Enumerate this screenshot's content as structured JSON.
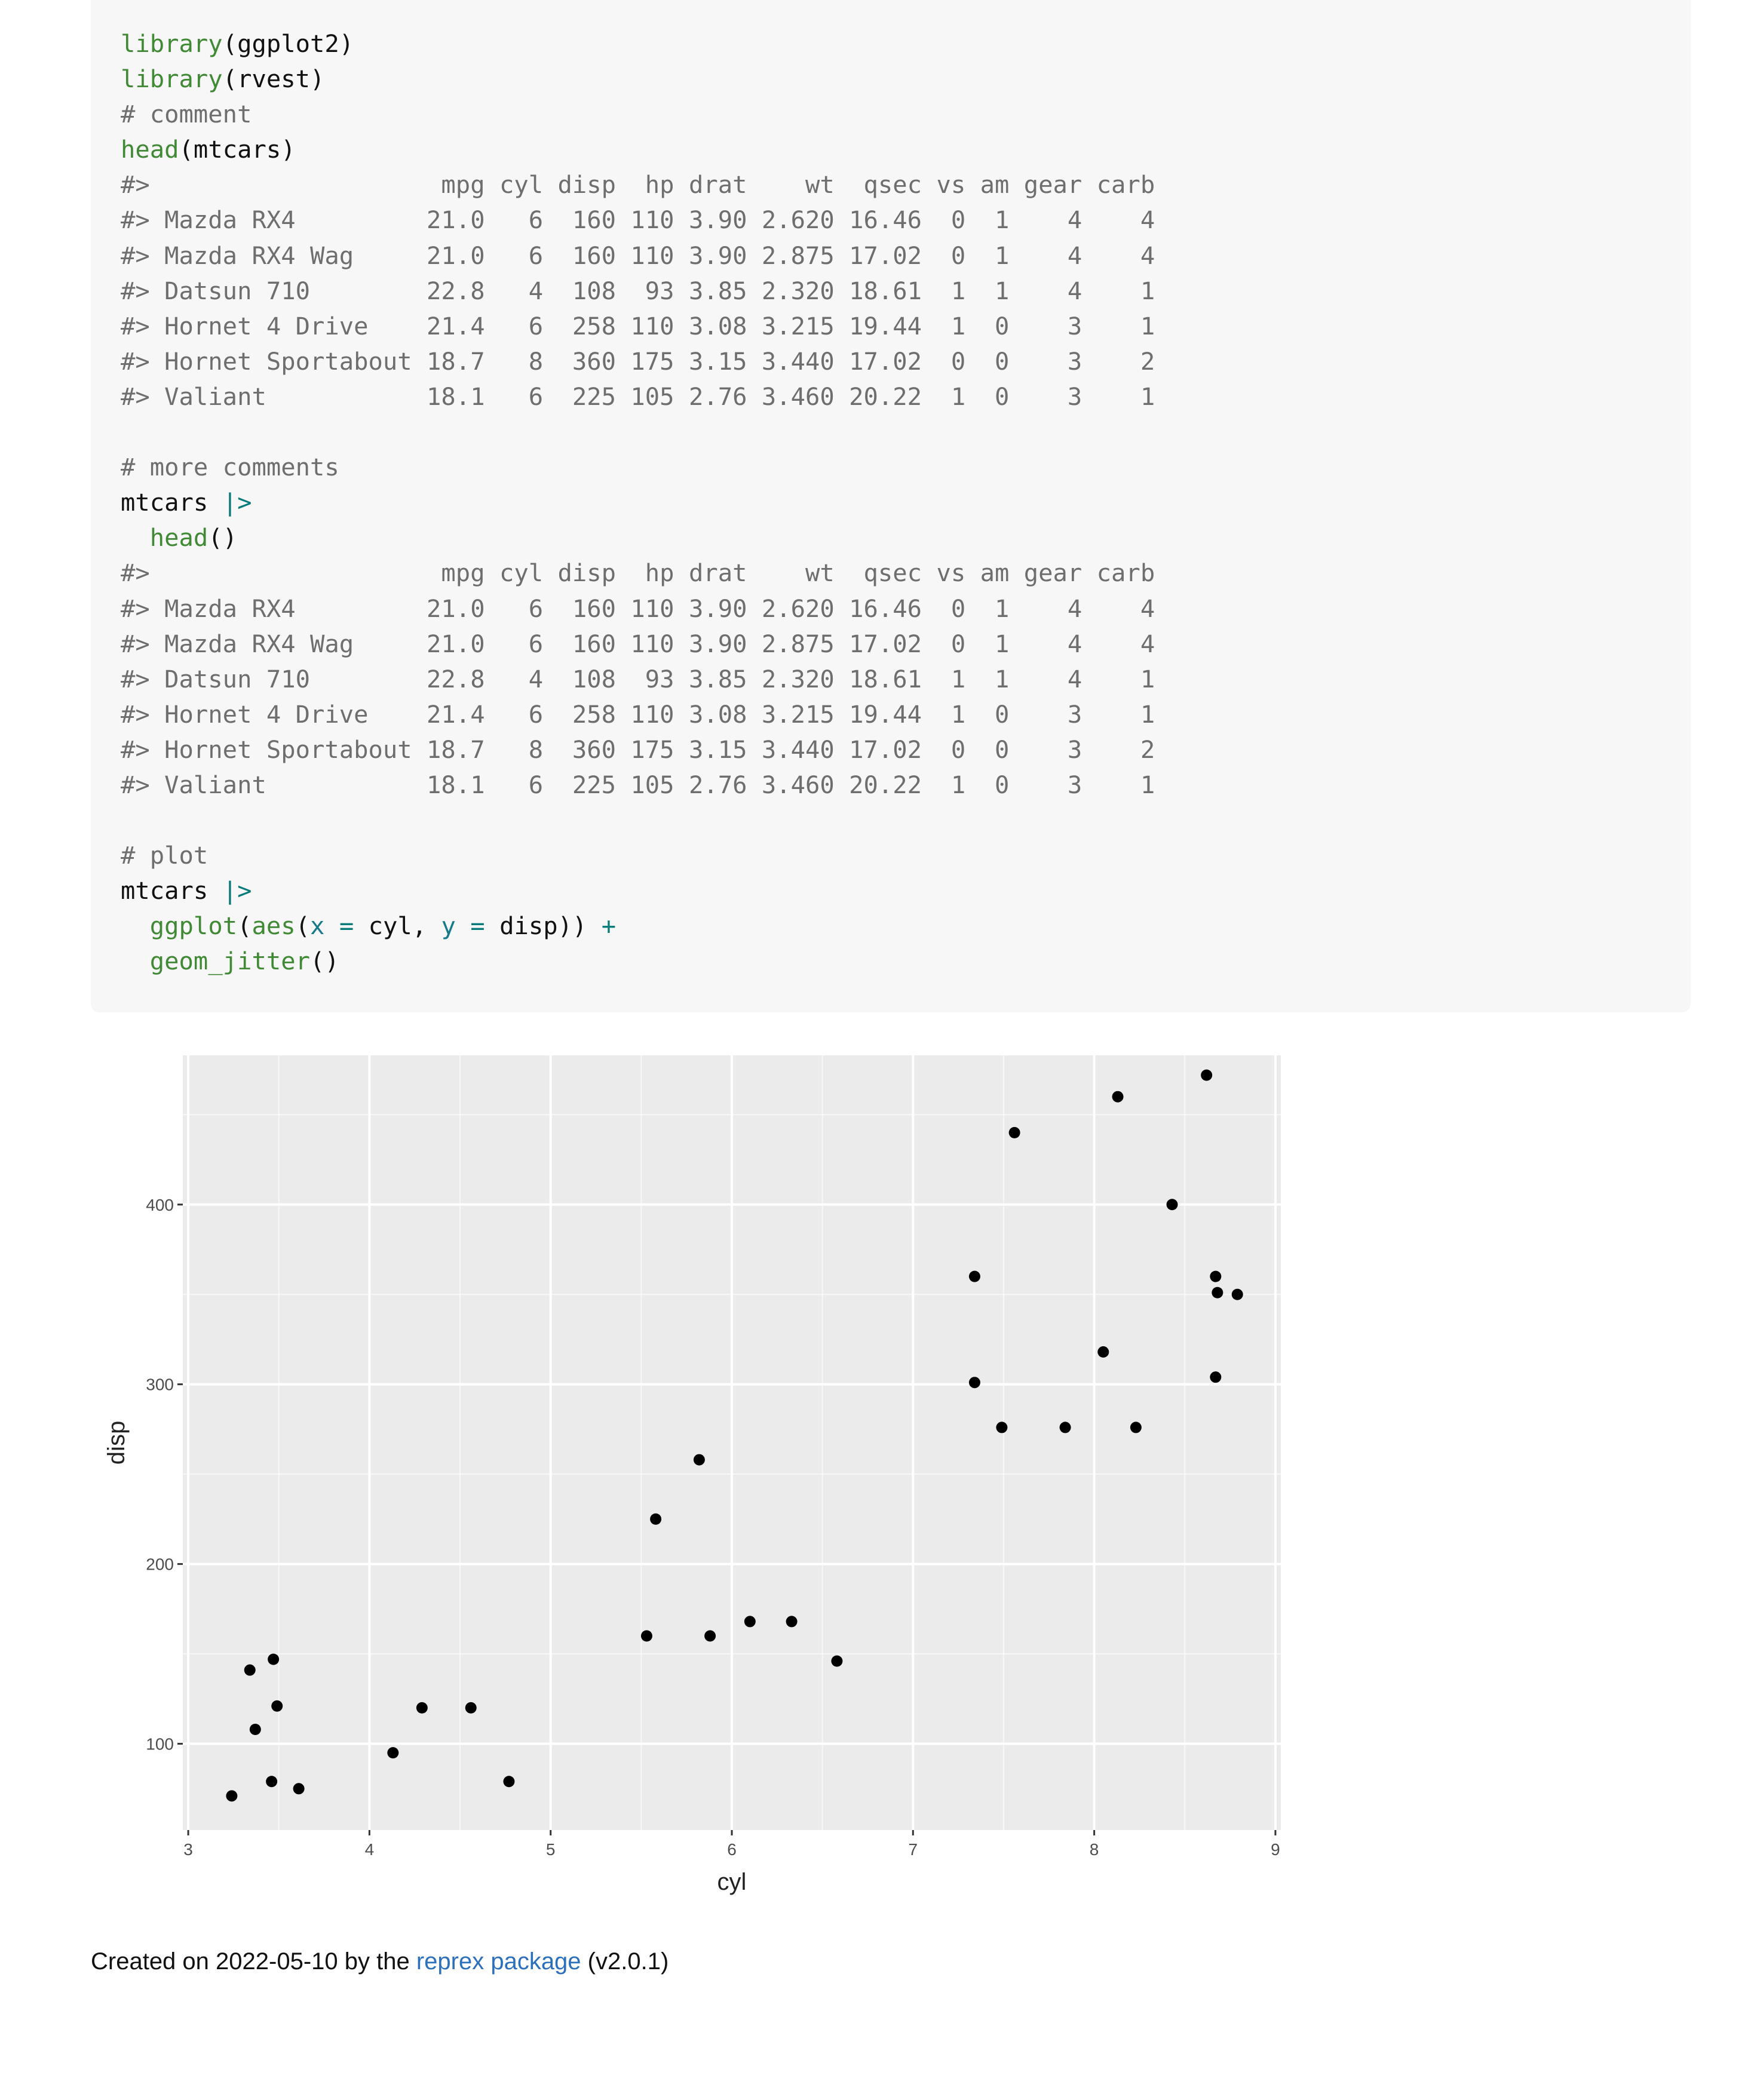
{
  "code": {
    "lines": [
      [
        {
          "t": "library",
          "c": "fn"
        },
        {
          "t": "(ggplot2)"
        }
      ],
      [
        {
          "t": "library",
          "c": "fn"
        },
        {
          "t": "(rvest)"
        }
      ],
      [
        {
          "t": "# comment",
          "c": "cm"
        }
      ],
      [
        {
          "t": "head",
          "c": "fn"
        },
        {
          "t": "(mtcars)"
        }
      ],
      [
        {
          "t": "#>                    mpg cyl disp  hp drat    wt  qsec vs am gear carb",
          "c": "out"
        }
      ],
      [
        {
          "t": "#> Mazda RX4         21.0   6  160 110 3.90 2.620 16.46  0  1    4    4",
          "c": "out"
        }
      ],
      [
        {
          "t": "#> Mazda RX4 Wag     21.0   6  160 110 3.90 2.875 17.02  0  1    4    4",
          "c": "out"
        }
      ],
      [
        {
          "t": "#> Datsun 710        22.8   4  108  93 3.85 2.320 18.61  1  1    4    1",
          "c": "out"
        }
      ],
      [
        {
          "t": "#> Hornet 4 Drive    21.4   6  258 110 3.08 3.215 19.44  1  0    3    1",
          "c": "out"
        }
      ],
      [
        {
          "t": "#> Hornet Sportabout 18.7   8  360 175 3.15 3.440 17.02  0  0    3    2",
          "c": "out"
        }
      ],
      [
        {
          "t": "#> Valiant           18.1   6  225 105 2.76 3.460 20.22  1  0    3    1",
          "c": "out"
        }
      ],
      [
        {
          "t": ""
        }
      ],
      [
        {
          "t": "# more comments",
          "c": "cm"
        }
      ],
      [
        {
          "t": "mtcars "
        },
        {
          "t": "|>",
          "c": "op"
        }
      ],
      [
        {
          "t": "  "
        },
        {
          "t": "head",
          "c": "fn"
        },
        {
          "t": "()"
        }
      ],
      [
        {
          "t": "#>                    mpg cyl disp  hp drat    wt  qsec vs am gear carb",
          "c": "out"
        }
      ],
      [
        {
          "t": "#> Mazda RX4         21.0   6  160 110 3.90 2.620 16.46  0  1    4    4",
          "c": "out"
        }
      ],
      [
        {
          "t": "#> Mazda RX4 Wag     21.0   6  160 110 3.90 2.875 17.02  0  1    4    4",
          "c": "out"
        }
      ],
      [
        {
          "t": "#> Datsun 710        22.8   4  108  93 3.85 2.320 18.61  1  1    4    1",
          "c": "out"
        }
      ],
      [
        {
          "t": "#> Hornet 4 Drive    21.4   6  258 110 3.08 3.215 19.44  1  0    3    1",
          "c": "out"
        }
      ],
      [
        {
          "t": "#> Hornet Sportabout 18.7   8  360 175 3.15 3.440 17.02  0  0    3    2",
          "c": "out"
        }
      ],
      [
        {
          "t": "#> Valiant           18.1   6  225 105 2.76 3.460 20.22  1  0    3    1",
          "c": "out"
        }
      ],
      [
        {
          "t": ""
        }
      ],
      [
        {
          "t": "# plot",
          "c": "cm"
        }
      ],
      [
        {
          "t": "mtcars "
        },
        {
          "t": "|>",
          "c": "op"
        }
      ],
      [
        {
          "t": "  "
        },
        {
          "t": "ggplot",
          "c": "fn"
        },
        {
          "t": "("
        },
        {
          "t": "aes",
          "c": "fn"
        },
        {
          "t": "("
        },
        {
          "t": "x",
          "c": "arg"
        },
        {
          "t": " "
        },
        {
          "t": "=",
          "c": "op"
        },
        {
          "t": " cyl, "
        },
        {
          "t": "y",
          "c": "arg"
        },
        {
          "t": " "
        },
        {
          "t": "=",
          "c": "op"
        },
        {
          "t": " disp)) "
        },
        {
          "t": "+",
          "c": "op"
        }
      ],
      [
        {
          "t": "  "
        },
        {
          "t": "geom_jitter",
          "c": "fn"
        },
        {
          "t": "()"
        }
      ]
    ]
  },
  "chart_data": {
    "type": "scatter",
    "xlabel": "cyl",
    "ylabel": "disp",
    "xlim": [
      2.97,
      9.03
    ],
    "ylim": [
      52,
      483
    ],
    "x_ticks": [
      3,
      4,
      5,
      6,
      7,
      8,
      9
    ],
    "y_ticks": [
      100,
      200,
      300,
      400
    ],
    "grid": true,
    "colors": {
      "panel": "#ebebeb",
      "grid": "#ffffff",
      "point": "#000000"
    },
    "points": [
      {
        "x": 3.24,
        "y": 71
      },
      {
        "x": 3.34,
        "y": 141
      },
      {
        "x": 3.37,
        "y": 108
      },
      {
        "x": 3.46,
        "y": 79
      },
      {
        "x": 3.47,
        "y": 147
      },
      {
        "x": 3.49,
        "y": 121
      },
      {
        "x": 3.61,
        "y": 75
      },
      {
        "x": 4.13,
        "y": 95
      },
      {
        "x": 4.29,
        "y": 120
      },
      {
        "x": 4.56,
        "y": 120
      },
      {
        "x": 4.77,
        "y": 79
      },
      {
        "x": 5.53,
        "y": 160
      },
      {
        "x": 5.58,
        "y": 225
      },
      {
        "x": 5.82,
        "y": 258
      },
      {
        "x": 5.88,
        "y": 160
      },
      {
        "x": 6.1,
        "y": 168
      },
      {
        "x": 6.33,
        "y": 168
      },
      {
        "x": 6.58,
        "y": 146
      },
      {
        "x": 7.34,
        "y": 360
      },
      {
        "x": 7.34,
        "y": 301
      },
      {
        "x": 7.49,
        "y": 276
      },
      {
        "x": 7.56,
        "y": 440
      },
      {
        "x": 7.84,
        "y": 276
      },
      {
        "x": 8.05,
        "y": 318
      },
      {
        "x": 8.13,
        "y": 460
      },
      {
        "x": 8.23,
        "y": 276
      },
      {
        "x": 8.43,
        "y": 400
      },
      {
        "x": 8.62,
        "y": 472
      },
      {
        "x": 8.67,
        "y": 304
      },
      {
        "x": 8.67,
        "y": 360
      },
      {
        "x": 8.68,
        "y": 351
      },
      {
        "x": 8.79,
        "y": 350
      }
    ]
  },
  "footer": {
    "prefix": "Created on 2022-05-10 by the ",
    "link": "reprex package",
    "suffix": " (v2.0.1)"
  }
}
